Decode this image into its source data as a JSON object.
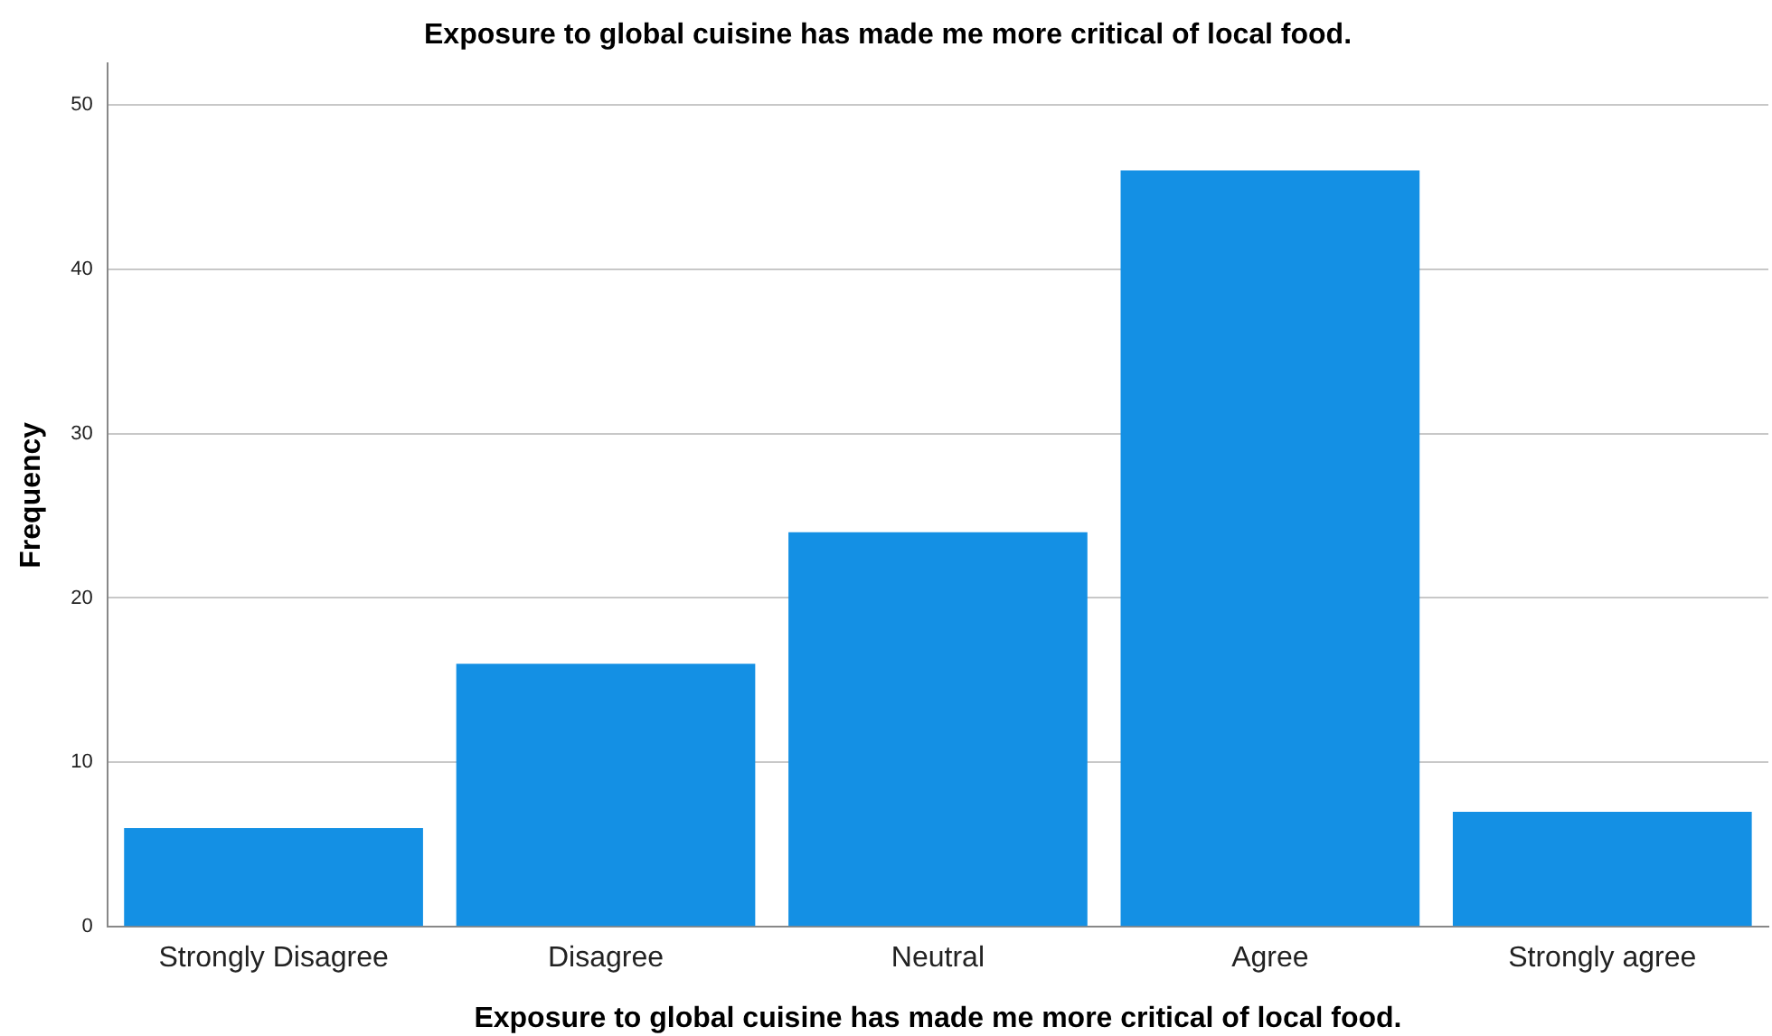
{
  "chart_data": {
    "type": "bar",
    "title": "Exposure to global cuisine has made me more critical of local food.",
    "xlabel": "Exposure to global cuisine has made me more critical of local food.",
    "ylabel": "Frequency",
    "categories": [
      "Strongly Disagree",
      "Disagree",
      "Neutral",
      "Agree",
      "Strongly agree"
    ],
    "values": [
      6,
      16,
      24,
      46,
      7
    ],
    "color": "#1490e4",
    "ylim": [
      0,
      52.5
    ],
    "yticks": [
      0,
      10,
      20,
      30,
      40,
      50
    ],
    "grid": "y",
    "legend": false
  }
}
